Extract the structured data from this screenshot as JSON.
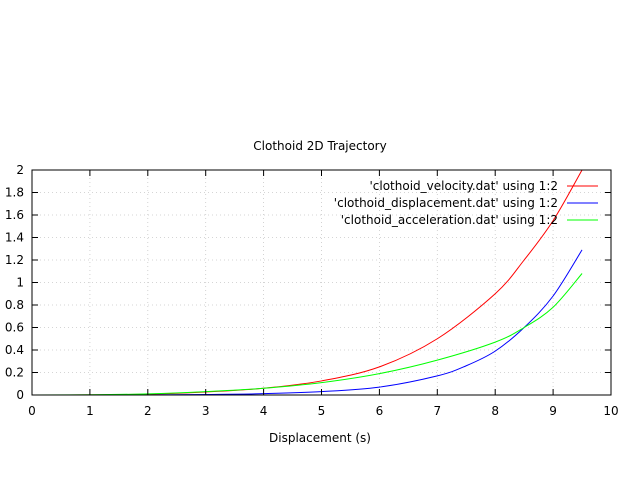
{
  "chart_data": {
    "type": "line",
    "title": "Clothoid 2D Trajectory",
    "xlabel": "Displacement (s)",
    "ylabel": "",
    "xlim": [
      0,
      10
    ],
    "ylim": [
      0,
      2
    ],
    "x_ticks": [
      0,
      1,
      2,
      3,
      4,
      5,
      6,
      7,
      8,
      9,
      10
    ],
    "y_ticks": [
      0,
      0.2,
      0.4,
      0.6,
      0.8,
      1,
      1.2,
      1.4,
      1.6,
      1.8,
      2
    ],
    "x_tick_labels": [
      "0",
      "1",
      "2",
      "3",
      "4",
      "5",
      "6",
      "7",
      "8",
      "9",
      "10"
    ],
    "y_tick_labels": [
      "0",
      "0.2",
      "0.4",
      "0.6",
      "0.8",
      "1",
      "1.2",
      "1.4",
      "1.6",
      "1.8",
      "2"
    ],
    "grid": true,
    "legend_position": "top-right",
    "series": [
      {
        "name": "'clothoid_velocity.dat' using 1:2",
        "color": "#ff0000",
        "x": [
          0,
          1,
          2,
          3,
          4,
          5,
          6,
          7,
          8,
          8.5,
          9,
          9.5
        ],
        "y": [
          0,
          0.001,
          0.008,
          0.027,
          0.06,
          0.125,
          0.25,
          0.5,
          0.9,
          1.2,
          1.55,
          2.0
        ]
      },
      {
        "name": "'clothoid_displacement.dat' using 1:2",
        "color": "#0000ff",
        "x": [
          0,
          2,
          3,
          4,
          5,
          6,
          7,
          7.5,
          8,
          8.5,
          9,
          9.5
        ],
        "y": [
          0,
          0.001,
          0.005,
          0.012,
          0.03,
          0.07,
          0.17,
          0.26,
          0.39,
          0.6,
          0.88,
          1.29
        ]
      },
      {
        "name": "'clothoid_acceleration.dat' using 1:2",
        "color": "#00ff00",
        "x": [
          0,
          1,
          2,
          3,
          4,
          5,
          6,
          7,
          8,
          8.5,
          9,
          9.5
        ],
        "y": [
          0,
          0.002,
          0.01,
          0.03,
          0.06,
          0.11,
          0.19,
          0.31,
          0.47,
          0.6,
          0.78,
          1.08
        ]
      }
    ]
  }
}
